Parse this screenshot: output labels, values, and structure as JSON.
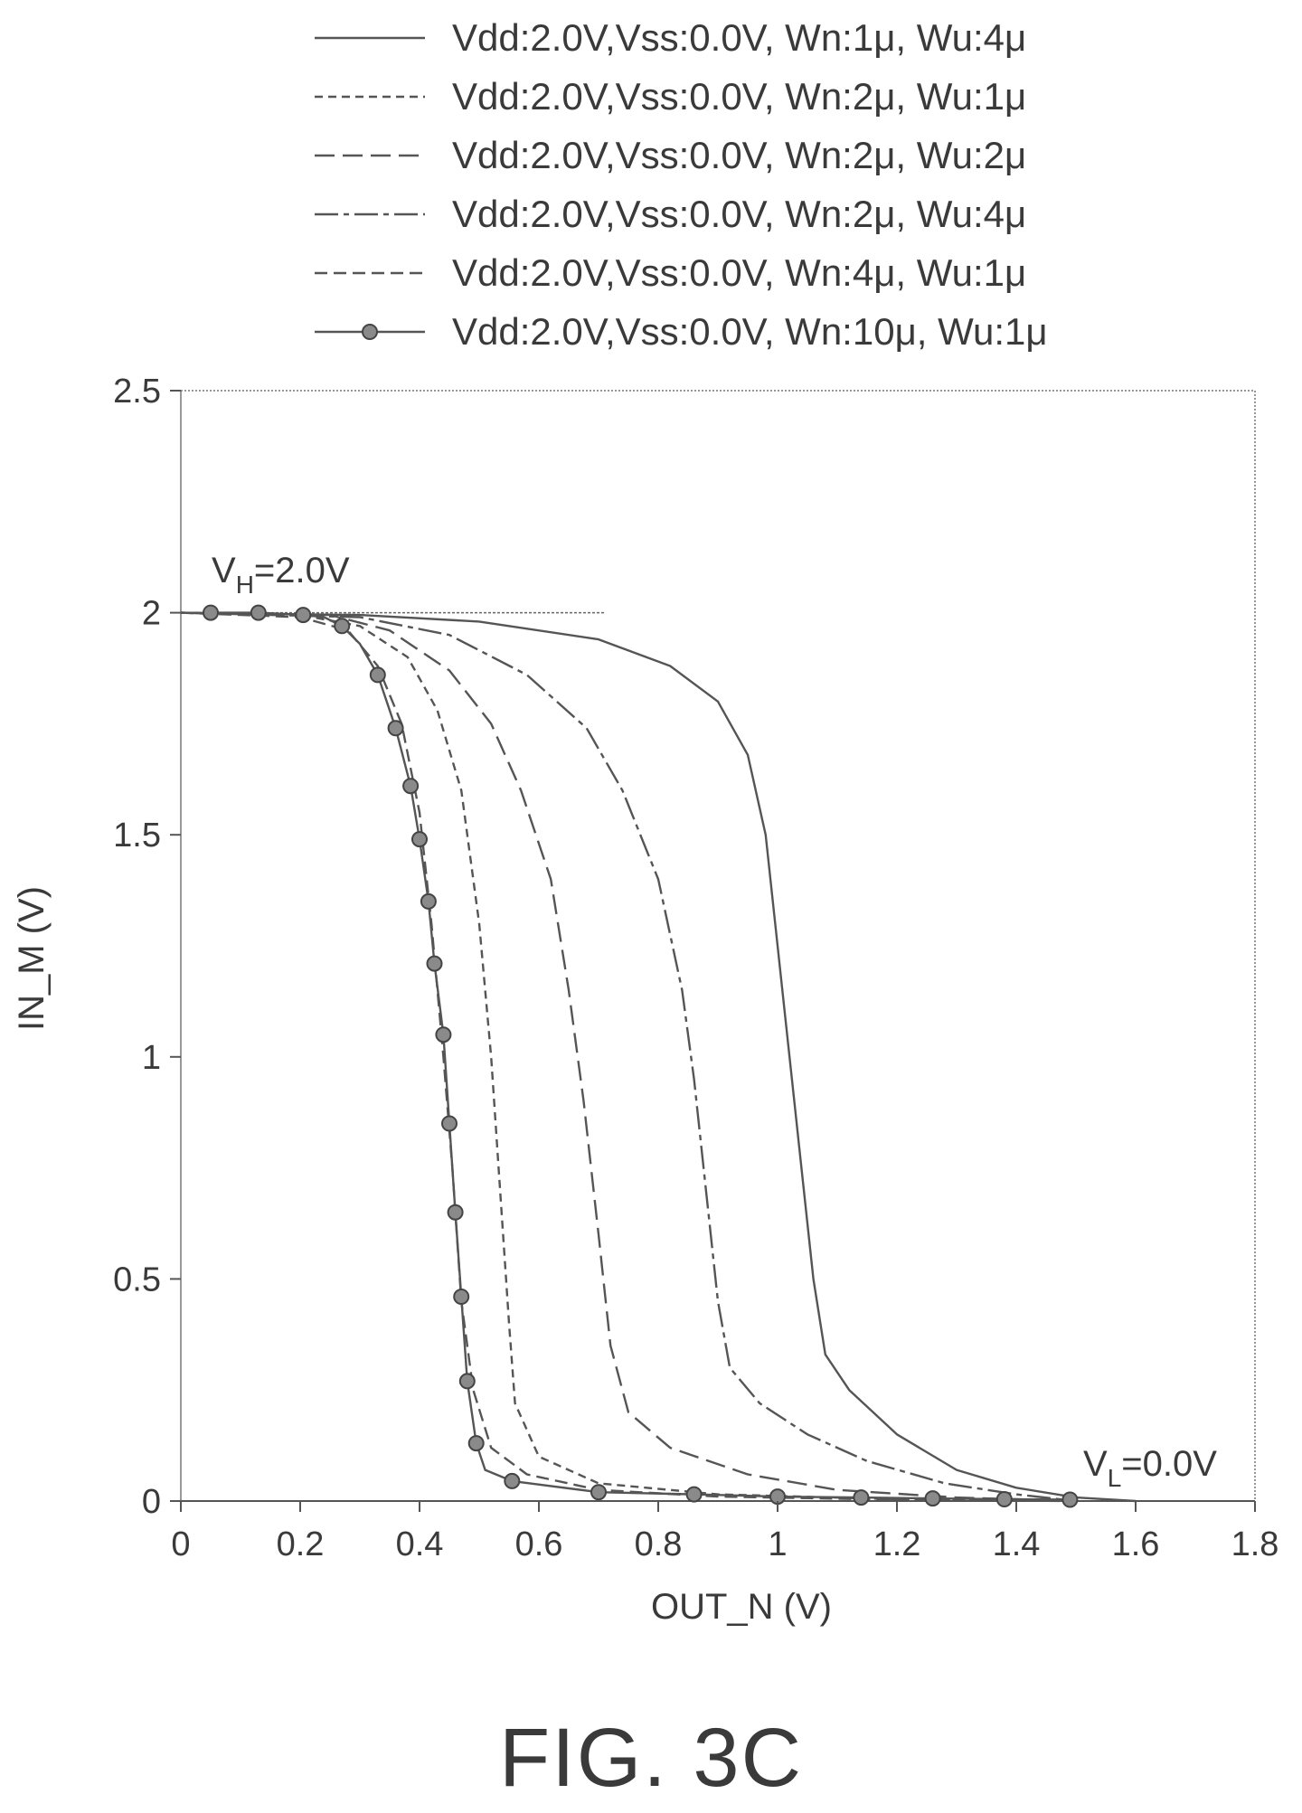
{
  "figure": {
    "caption": "FIG. 3C"
  },
  "annotations": {
    "vh": {
      "main": "V",
      "sub": "H",
      "rest": "=2.0V"
    },
    "vl": {
      "main": "V",
      "sub": "L",
      "rest": "=0.0V"
    }
  },
  "chart_data": {
    "type": "line",
    "title": "",
    "xlabel": "OUT_N (V)",
    "ylabel": "IN_M (V)",
    "xlim": [
      0,
      1.8
    ],
    "ylim": [
      0,
      2.5
    ],
    "xticks": [
      "0",
      "0.2",
      "0.4",
      "0.6",
      "0.8",
      "1",
      "1.2",
      "1.4",
      "1.6",
      "1.8"
    ],
    "yticks": [
      "0",
      "0.5",
      "1",
      "1.5",
      "2",
      "2.5"
    ],
    "grid": false,
    "legend_position": "top",
    "vh_reference_line": {
      "y": 2.0,
      "x": [
        0,
        0.71
      ]
    },
    "series": [
      {
        "name": "Vdd:2.0V,Vss:0.0V, Wn:1μ, Wu:4μ",
        "dash": "solid",
        "markers": false,
        "points": [
          [
            0,
            2.0
          ],
          [
            0.3,
            1.995
          ],
          [
            0.5,
            1.98
          ],
          [
            0.7,
            1.94
          ],
          [
            0.82,
            1.88
          ],
          [
            0.9,
            1.8
          ],
          [
            0.95,
            1.68
          ],
          [
            0.98,
            1.5
          ],
          [
            1.0,
            1.25
          ],
          [
            1.02,
            1.0
          ],
          [
            1.04,
            0.75
          ],
          [
            1.06,
            0.5
          ],
          [
            1.08,
            0.33
          ],
          [
            1.12,
            0.25
          ],
          [
            1.2,
            0.15
          ],
          [
            1.3,
            0.07
          ],
          [
            1.4,
            0.03
          ],
          [
            1.5,
            0.008
          ],
          [
            1.6,
            0.0
          ]
        ]
      },
      {
        "name": "Vdd:2.0V,Vss:0.0V, Wn:2μ, Wu:1μ",
        "dash": "short-dash",
        "markers": false,
        "points": [
          [
            0,
            2.0
          ],
          [
            0.2,
            1.995
          ],
          [
            0.3,
            1.97
          ],
          [
            0.38,
            1.9
          ],
          [
            0.43,
            1.78
          ],
          [
            0.47,
            1.6
          ],
          [
            0.5,
            1.3
          ],
          [
            0.52,
            1.0
          ],
          [
            0.535,
            0.7
          ],
          [
            0.55,
            0.4
          ],
          [
            0.56,
            0.22
          ],
          [
            0.6,
            0.1
          ],
          [
            0.7,
            0.04
          ],
          [
            0.9,
            0.015
          ],
          [
            1.2,
            0.004
          ],
          [
            1.5,
            0.0
          ]
        ]
      },
      {
        "name": "Vdd:2.0V,Vss:0.0V, Wn:2μ, Wu:2μ",
        "dash": "long-dash",
        "markers": false,
        "points": [
          [
            0,
            2.0
          ],
          [
            0.25,
            1.995
          ],
          [
            0.35,
            1.96
          ],
          [
            0.45,
            1.87
          ],
          [
            0.52,
            1.75
          ],
          [
            0.57,
            1.6
          ],
          [
            0.62,
            1.4
          ],
          [
            0.65,
            1.15
          ],
          [
            0.675,
            0.9
          ],
          [
            0.7,
            0.6
          ],
          [
            0.72,
            0.35
          ],
          [
            0.75,
            0.2
          ],
          [
            0.82,
            0.12
          ],
          [
            0.95,
            0.06
          ],
          [
            1.1,
            0.025
          ],
          [
            1.3,
            0.008
          ],
          [
            1.5,
            0.0
          ]
        ]
      },
      {
        "name": "Vdd:2.0V,Vss:0.0V, Wn:2μ, Wu:4μ",
        "dash": "long-short",
        "markers": false,
        "points": [
          [
            0,
            2.0
          ],
          [
            0.3,
            1.99
          ],
          [
            0.45,
            1.95
          ],
          [
            0.58,
            1.86
          ],
          [
            0.68,
            1.74
          ],
          [
            0.74,
            1.6
          ],
          [
            0.8,
            1.4
          ],
          [
            0.84,
            1.15
          ],
          [
            0.86,
            0.95
          ],
          [
            0.88,
            0.7
          ],
          [
            0.9,
            0.45
          ],
          [
            0.92,
            0.3
          ],
          [
            0.97,
            0.22
          ],
          [
            1.05,
            0.15
          ],
          [
            1.15,
            0.09
          ],
          [
            1.28,
            0.04
          ],
          [
            1.4,
            0.015
          ],
          [
            1.5,
            0.0
          ]
        ]
      },
      {
        "name": "Vdd:2.0V,Vss:0.0V, Wn:4μ, Wu:1μ",
        "dash": "medium-dash",
        "markers": false,
        "points": [
          [
            0,
            2.0
          ],
          [
            0.2,
            1.99
          ],
          [
            0.28,
            1.96
          ],
          [
            0.33,
            1.88
          ],
          [
            0.37,
            1.75
          ],
          [
            0.4,
            1.55
          ],
          [
            0.42,
            1.3
          ],
          [
            0.44,
            1.0
          ],
          [
            0.455,
            0.75
          ],
          [
            0.47,
            0.45
          ],
          [
            0.49,
            0.25
          ],
          [
            0.52,
            0.12
          ],
          [
            0.58,
            0.06
          ],
          [
            0.7,
            0.025
          ],
          [
            0.9,
            0.01
          ],
          [
            1.2,
            0.003
          ],
          [
            1.5,
            0.0
          ]
        ]
      },
      {
        "name": "Vdd:2.0V,Vss:0.0V, Wn:10μ, Wu:1μ",
        "dash": "solid",
        "markers": true,
        "points": [
          [
            0.05,
            2.0
          ],
          [
            0.13,
            2.0
          ],
          [
            0.205,
            1.995
          ],
          [
            0.24,
            1.99
          ],
          [
            0.27,
            1.97
          ],
          [
            0.3,
            1.93
          ],
          [
            0.33,
            1.86
          ],
          [
            0.36,
            1.74
          ],
          [
            0.385,
            1.61
          ],
          [
            0.4,
            1.49
          ],
          [
            0.415,
            1.35
          ],
          [
            0.425,
            1.21
          ],
          [
            0.44,
            1.05
          ],
          [
            0.45,
            0.85
          ],
          [
            0.46,
            0.65
          ],
          [
            0.47,
            0.46
          ],
          [
            0.48,
            0.27
          ],
          [
            0.495,
            0.13
          ],
          [
            0.51,
            0.07
          ],
          [
            0.555,
            0.045
          ],
          [
            0.7,
            0.02
          ],
          [
            0.86,
            0.015
          ],
          [
            1.0,
            0.01
          ],
          [
            1.14,
            0.008
          ],
          [
            1.26,
            0.006
          ],
          [
            1.38,
            0.004
          ],
          [
            1.49,
            0.003
          ]
        ],
        "marker_x": [
          0.05,
          0.13,
          0.205,
          0.27,
          0.33,
          0.36,
          0.385,
          0.4,
          0.415,
          0.425,
          0.44,
          0.45,
          0.46,
          0.47,
          0.48,
          0.495,
          0.555,
          0.7,
          0.86,
          1.0,
          1.14,
          1.26,
          1.38,
          1.49
        ]
      }
    ]
  }
}
